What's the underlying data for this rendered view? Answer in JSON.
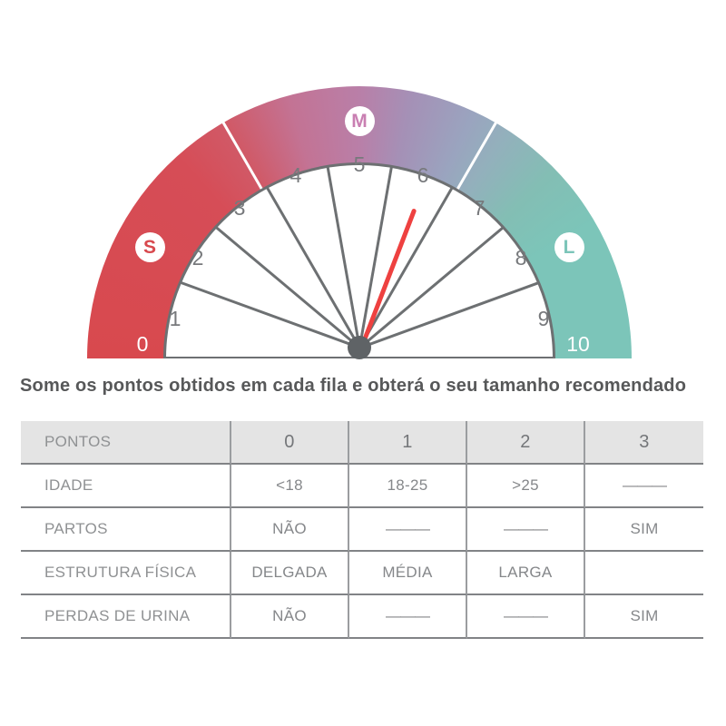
{
  "heading": "Some os pontos obtidos em cada fila e obterá o seu tamanho recomendado",
  "gauge": {
    "scale_min_label": "0",
    "scale_max_label": "10",
    "tick_labels": [
      "1",
      "2",
      "3",
      "4",
      "5",
      "6",
      "7",
      "8",
      "9"
    ],
    "zone_badges": [
      {
        "label": "S",
        "color": "#d8494e"
      },
      {
        "label": "M",
        "color": "#c97fb2"
      },
      {
        "label": "L",
        "color": "#7cc5b9"
      }
    ],
    "needle_value": 6.2,
    "needle_color": "#ee4140",
    "ring_colors": {
      "small": "#d8494e",
      "medium": "#b97fa8",
      "large": "#7cc5b9"
    }
  },
  "table": {
    "header": [
      "PONTOS",
      "0",
      "1",
      "2",
      "3"
    ],
    "rows": [
      {
        "label": "IDADE",
        "values": [
          "<18",
          "18-25",
          ">25",
          "———"
        ]
      },
      {
        "label": "PARTOS",
        "values": [
          "NÃO",
          "———",
          "———",
          "SIM"
        ]
      },
      {
        "label": "ESTRUTURA FÍSICA",
        "values": [
          "DELGADA",
          "MÉDIA",
          "LARGA",
          ""
        ]
      },
      {
        "label": "PERDAS DE URINA",
        "values": [
          "NÃO",
          "———",
          "———",
          "SIM"
        ]
      }
    ]
  },
  "chart_data": [
    {
      "type": "gauge",
      "title": "Tamanho recomendado (S / M / L)",
      "scale": {
        "min": 0,
        "max": 10,
        "tick_labels": [
          "0",
          "1",
          "2",
          "3",
          "4",
          "5",
          "6",
          "7",
          "8",
          "9",
          "10"
        ]
      },
      "zones": [
        {
          "label": "S",
          "range": [
            0,
            3.3
          ],
          "color": "#d8494e"
        },
        {
          "label": "M",
          "range": [
            3.3,
            6.7
          ],
          "color": "#b97fa8"
        },
        {
          "label": "L",
          "range": [
            6.7,
            10
          ],
          "color": "#7cc5b9"
        }
      ],
      "needle_value": 6.2,
      "layout": {
        "shape": "semicircle",
        "needle_color": "#ee4140"
      }
    },
    {
      "type": "table",
      "title": "Some os pontos obtidos em cada fila e obterá o seu tamanho recomendado",
      "header": [
        "PONTOS",
        "0",
        "1",
        "2",
        "3"
      ],
      "rows": [
        [
          "IDADE",
          "<18",
          "18-25",
          ">25",
          "—"
        ],
        [
          "PARTOS",
          "NÃO",
          "—",
          "—",
          "SIM"
        ],
        [
          "ESTRUTURA FÍSICA",
          "DELGADA",
          "MÉDIA",
          "LARGA",
          ""
        ],
        [
          "PERDAS DE URINA",
          "NÃO",
          "—",
          "—",
          "SIM"
        ]
      ]
    }
  ]
}
